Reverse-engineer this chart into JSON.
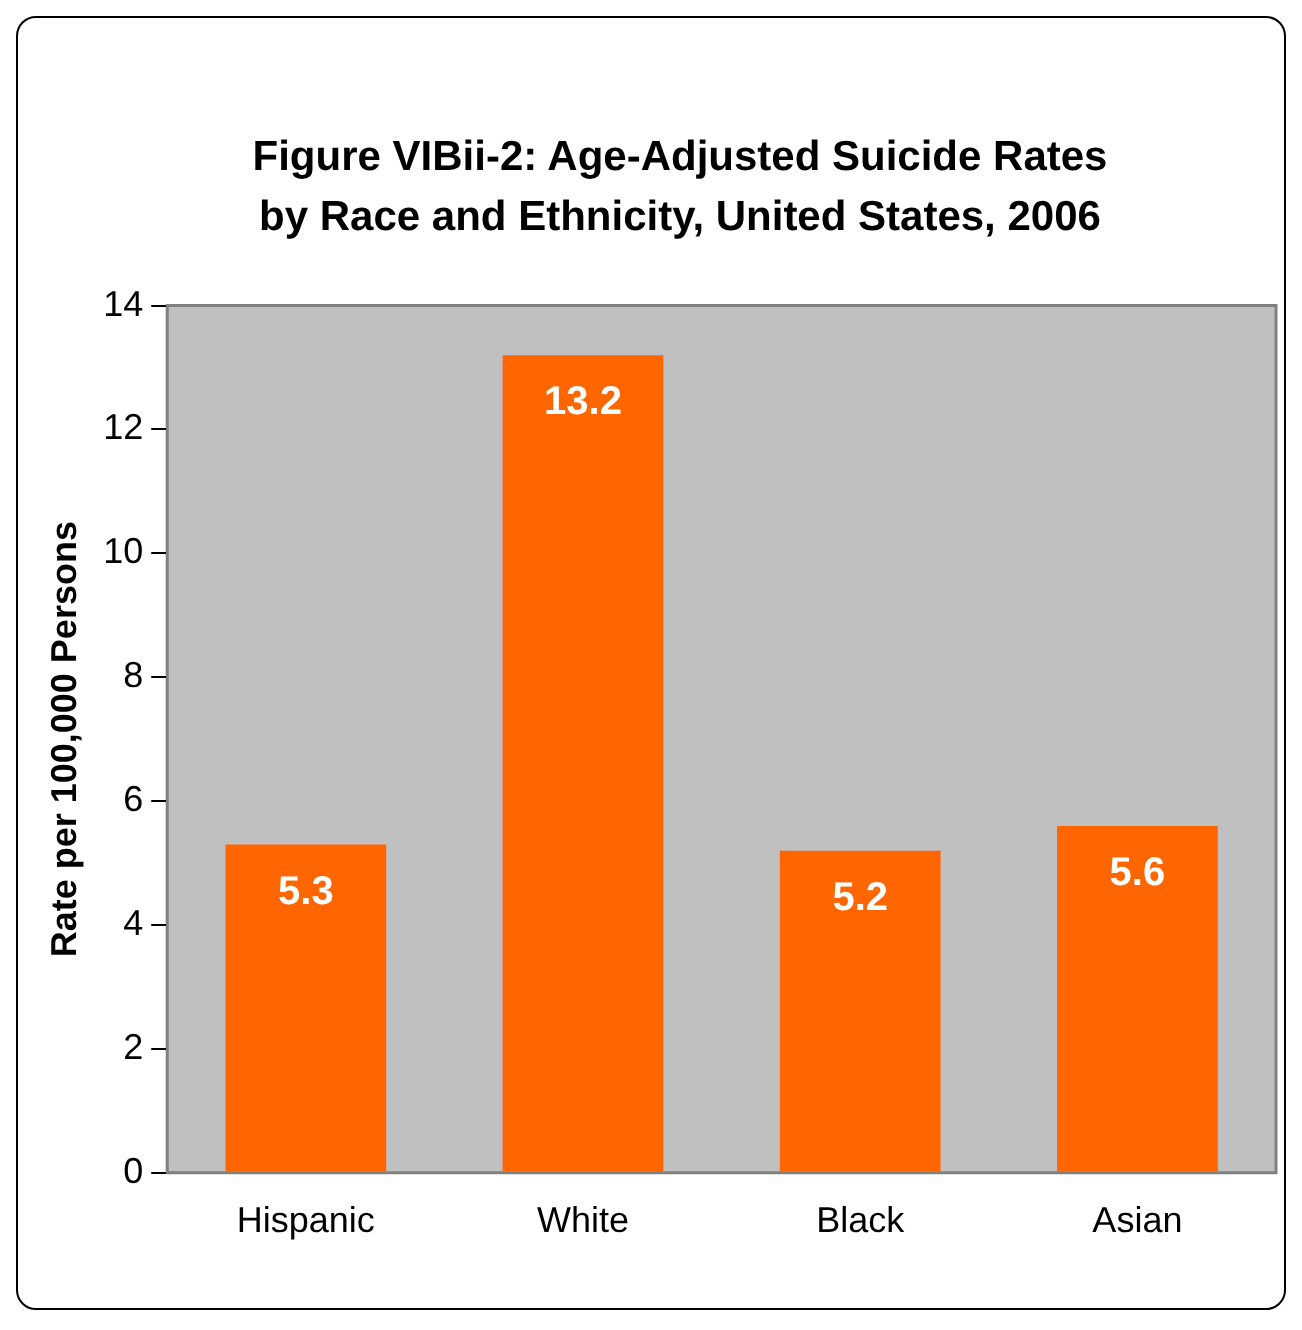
{
  "chart_data": {
    "type": "bar",
    "title": "Figure VIBii-2: Age-Adjusted Suicide Rates by Race and Ethnicity, United States, 2006",
    "ylabel": "Rate per 100,000 Persons",
    "categories": [
      "Hispanic",
      "White",
      "Black",
      "Asian"
    ],
    "values": [
      5.3,
      13.2,
      5.2,
      5.6
    ],
    "color": "#ff6600",
    "ylim": [
      0,
      14
    ],
    "yticks": [
      0,
      2,
      4,
      6,
      8,
      10,
      12,
      14
    ],
    "grid": false,
    "legend": false,
    "data_labels": true
  }
}
